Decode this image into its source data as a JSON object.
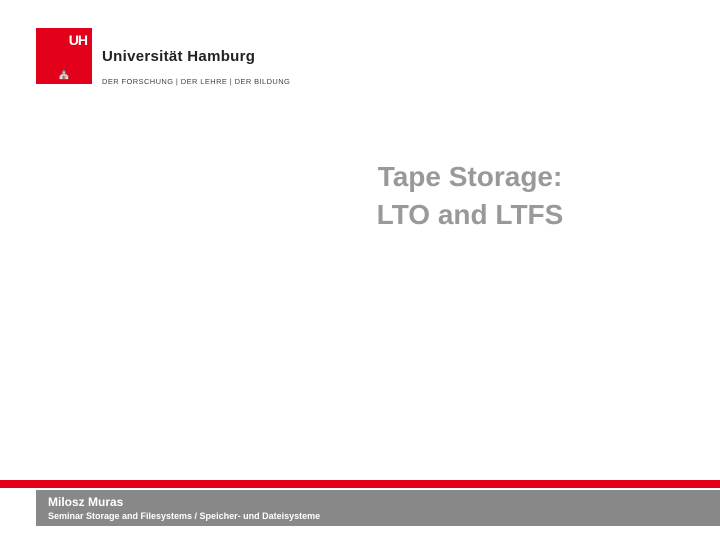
{
  "logo": {
    "uh_text": "UH",
    "crest_glyph": "⛪",
    "university_name": "Universität Hamburg",
    "tagline": "DER FORSCHUNG | DER LEHRE | DER BILDUNG"
  },
  "title": {
    "line1": "Tape Storage:",
    "line2": "LTO and LTFS"
  },
  "footer": {
    "author": "Milosz Muras",
    "seminar": "Seminar Storage and Filesystems / Speicher- und Dateisysteme"
  },
  "colors": {
    "brand_red": "#e2001a",
    "title_gray": "#999999",
    "bar_gray": "#888888",
    "white": "#ffffff"
  }
}
